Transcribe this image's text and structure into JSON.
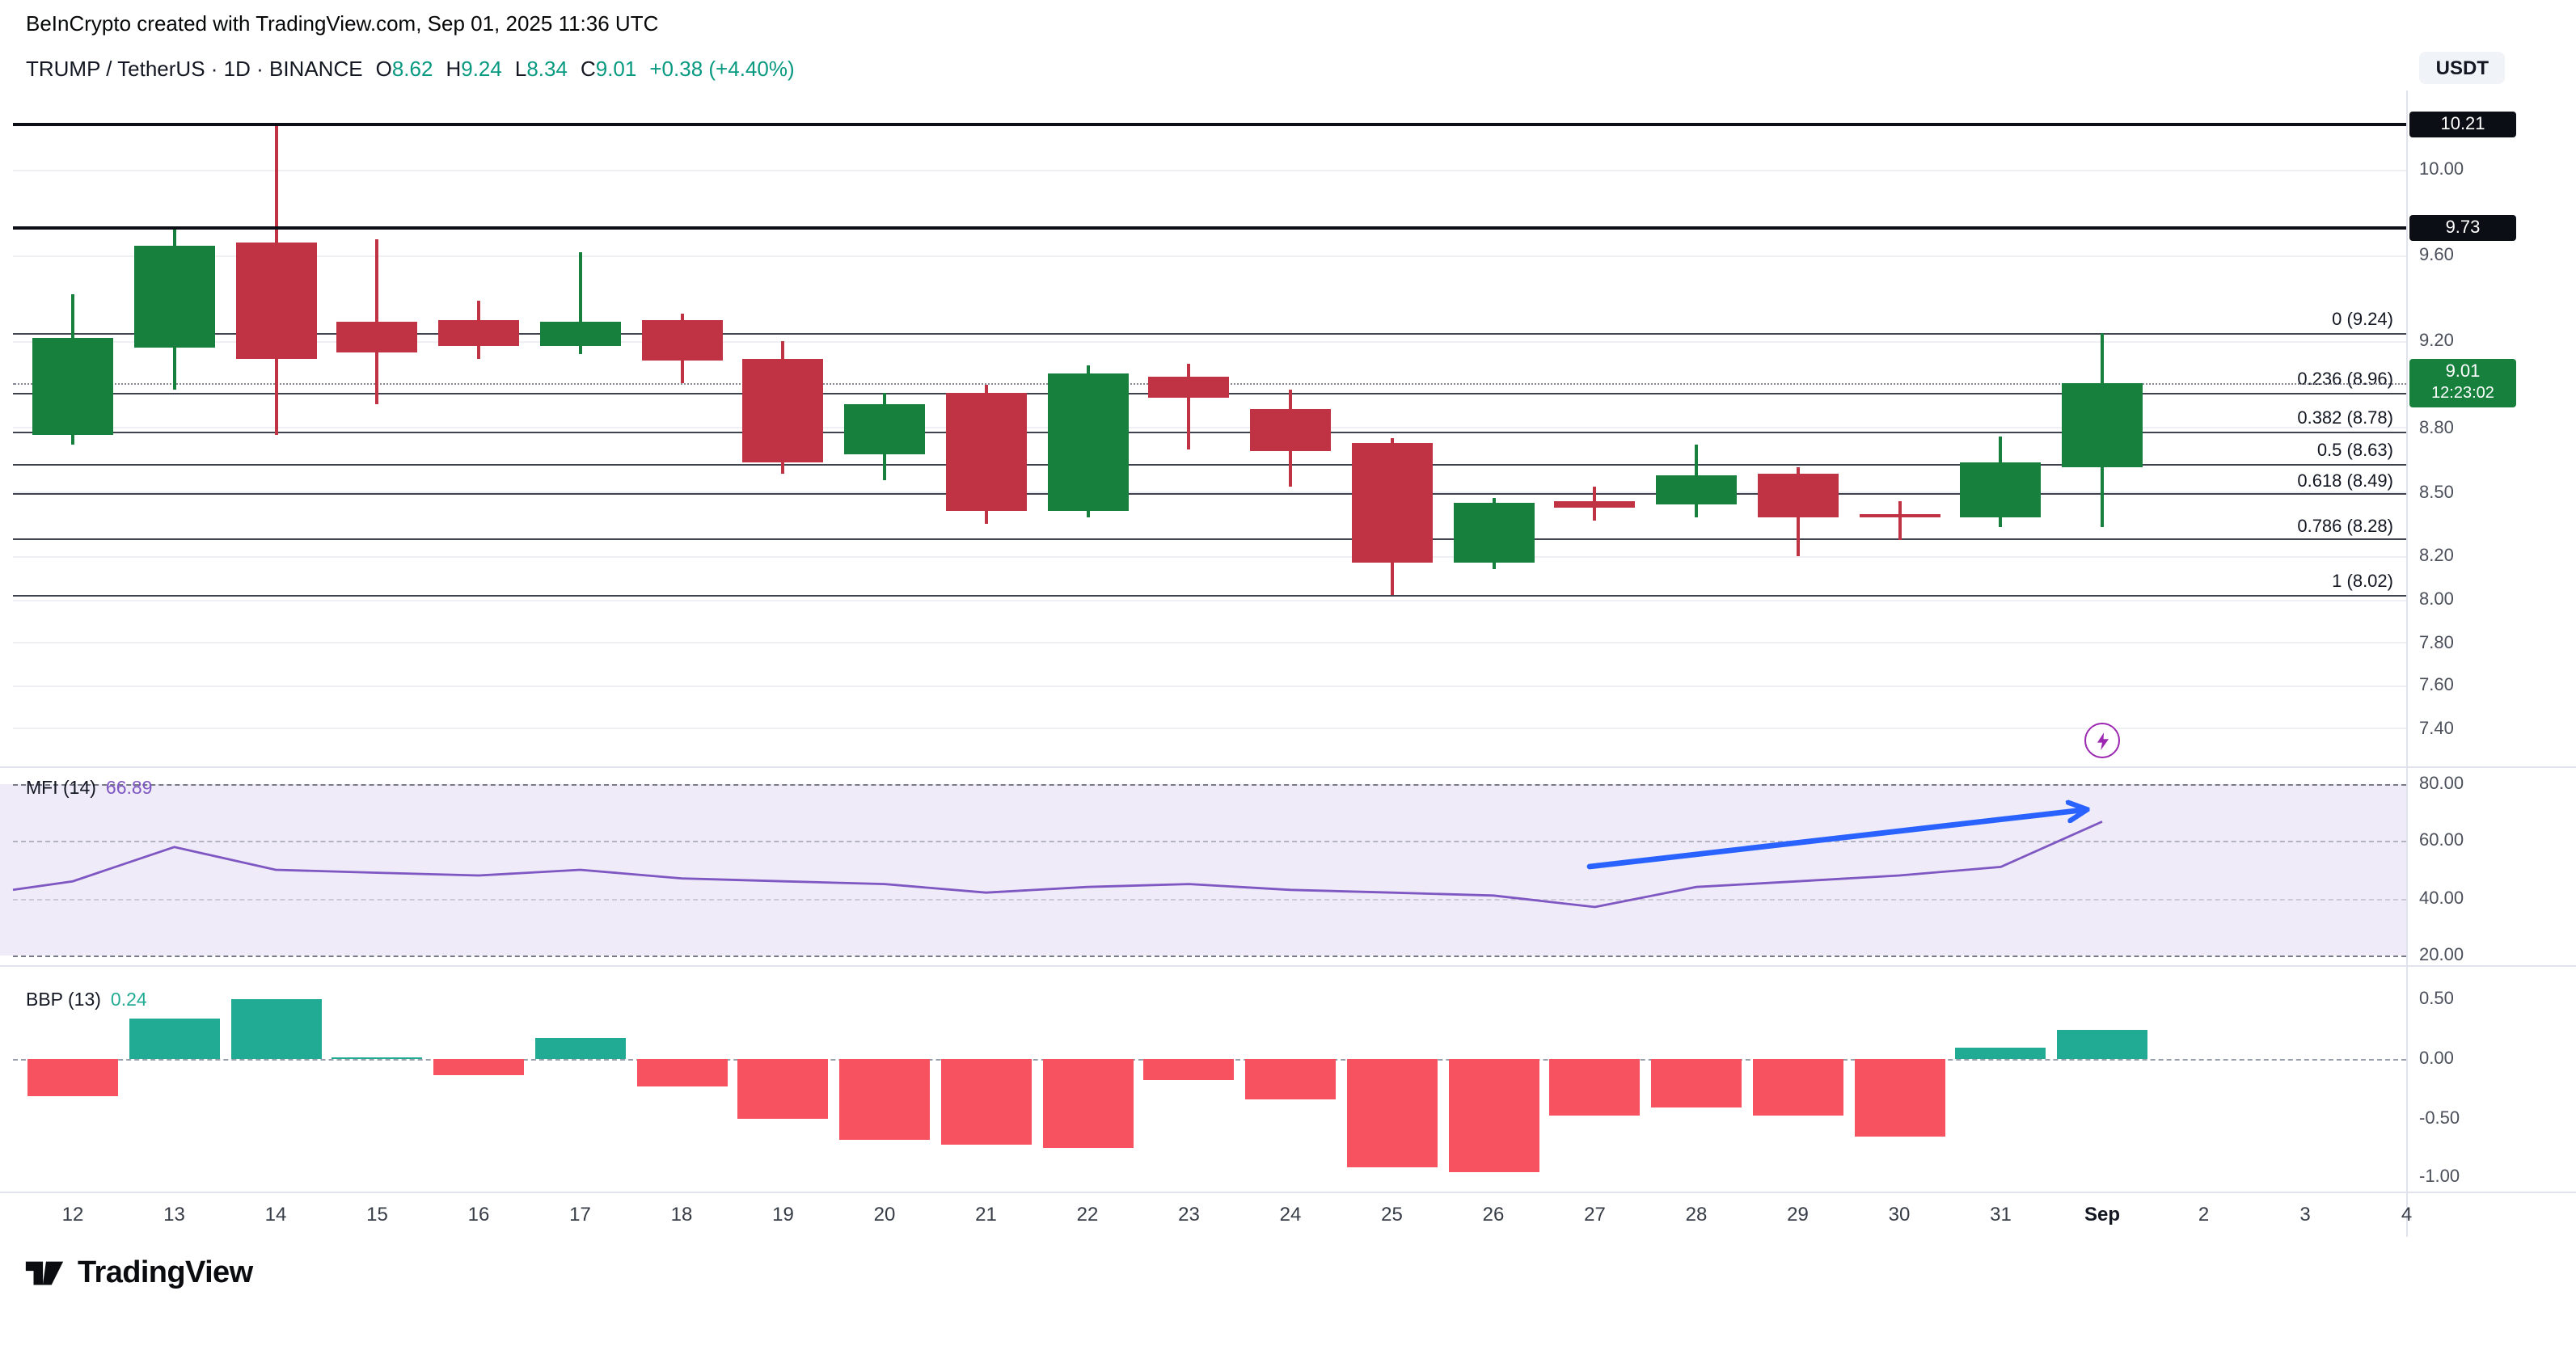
{
  "page": {
    "attribution": "BeInCrypto created with TradingView.com, Sep 01, 2025 11:36 UTC",
    "watermark": "TradingView"
  },
  "symbol_bar": {
    "title": "TRUMP / TetherUS · 1D · BINANCE",
    "open_label": "O",
    "open": "8.62",
    "high_label": "H",
    "high": "9.24",
    "low_label": "L",
    "low": "8.34",
    "close_label": "C",
    "close": "9.01",
    "change": "+0.38 (+4.40%)",
    "currency": "USDT"
  },
  "chart_data": [
    {
      "type": "candlestick",
      "name": "price",
      "symbol": "TRUMP / TetherUS",
      "interval": "1D",
      "exchange": "BINANCE",
      "categories": [
        "12",
        "13",
        "14",
        "15",
        "16",
        "17",
        "18",
        "19",
        "20",
        "21",
        "22",
        "23",
        "24",
        "25",
        "26",
        "27",
        "28",
        "29",
        "30",
        "31",
        "Sep"
      ],
      "candles": [
        {
          "o": 8.77,
          "h": 9.42,
          "l": 8.72,
          "c": 9.22
        },
        {
          "o": 9.17,
          "h": 9.74,
          "l": 8.98,
          "c": 9.65
        },
        {
          "o": 9.66,
          "h": 10.21,
          "l": 8.77,
          "c": 9.12
        },
        {
          "o": 9.29,
          "h": 9.68,
          "l": 8.91,
          "c": 9.15
        },
        {
          "o": 9.3,
          "h": 9.39,
          "l": 9.12,
          "c": 9.18
        },
        {
          "o": 9.18,
          "h": 9.62,
          "l": 9.14,
          "c": 9.29
        },
        {
          "o": 9.3,
          "h": 9.33,
          "l": 9.01,
          "c": 9.11
        },
        {
          "o": 9.12,
          "h": 9.2,
          "l": 8.59,
          "c": 8.64
        },
        {
          "o": 8.68,
          "h": 8.96,
          "l": 8.56,
          "c": 8.91
        },
        {
          "o": 8.96,
          "h": 9.0,
          "l": 8.35,
          "c": 8.41
        },
        {
          "o": 8.41,
          "h": 9.09,
          "l": 8.38,
          "c": 9.05
        },
        {
          "o": 9.04,
          "h": 9.1,
          "l": 8.7,
          "c": 8.94
        },
        {
          "o": 8.89,
          "h": 8.98,
          "l": 8.53,
          "c": 8.69
        },
        {
          "o": 8.73,
          "h": 8.75,
          "l": 8.02,
          "c": 8.17
        },
        {
          "o": 8.17,
          "h": 8.47,
          "l": 8.14,
          "c": 8.45
        },
        {
          "o": 8.46,
          "h": 8.53,
          "l": 8.37,
          "c": 8.43
        },
        {
          "o": 8.44,
          "h": 8.72,
          "l": 8.38,
          "c": 8.58
        },
        {
          "o": 8.59,
          "h": 8.62,
          "l": 8.2,
          "c": 8.38
        },
        {
          "o": 8.4,
          "h": 8.46,
          "l": 8.28,
          "c": 8.39
        },
        {
          "o": 8.38,
          "h": 8.76,
          "l": 8.34,
          "c": 8.64
        },
        {
          "o": 8.62,
          "h": 9.24,
          "l": 8.34,
          "c": 9.01
        }
      ],
      "fib_levels": [
        {
          "label": "0 (9.24)",
          "value": 9.24
        },
        {
          "label": "0.236 (8.96)",
          "value": 8.96
        },
        {
          "label": "0.382 (8.78)",
          "value": 8.78
        },
        {
          "label": "0.5 (8.63)",
          "value": 8.63
        },
        {
          "label": "0.618 (8.49)",
          "value": 8.49
        },
        {
          "label": "0.786 (8.28)",
          "value": 8.28
        },
        {
          "label": "1 (8.02)",
          "value": 8.02
        }
      ],
      "price_lines": [
        {
          "label": "10.21",
          "value": 10.21
        },
        {
          "label": "9.73",
          "value": 9.73
        }
      ],
      "last_price": {
        "label": "9.01",
        "countdown": "12:23:02",
        "value": 9.01
      },
      "y_ticks": [
        {
          "label": "10.00",
          "value": 10.0
        },
        {
          "label": "9.60",
          "value": 9.6
        },
        {
          "label": "9.20",
          "value": 9.2
        },
        {
          "label": "8.80",
          "value": 8.8
        },
        {
          "label": "8.50",
          "value": 8.5
        },
        {
          "label": "8.20",
          "value": 8.2
        },
        {
          "label": "8.00",
          "value": 8.0
        },
        {
          "label": "7.80",
          "value": 7.8
        },
        {
          "label": "7.60",
          "value": 7.6
        },
        {
          "label": "7.40",
          "value": 7.4
        }
      ],
      "ylim": [
        7.35,
        10.35
      ]
    },
    {
      "type": "line",
      "name": "MFI (14)",
      "value_label": "66.89",
      "values": [
        46,
        58,
        50,
        49,
        48,
        50,
        47,
        46,
        45,
        42,
        44,
        45,
        43,
        42,
        41,
        37,
        44,
        46,
        48,
        51,
        66.89
      ],
      "edge_start": 43,
      "y_ticks": [
        {
          "label": "80.00",
          "value": 80
        },
        {
          "label": "60.00",
          "value": 60
        },
        {
          "label": "40.00",
          "value": 40
        },
        {
          "label": "20.00",
          "value": 20
        }
      ],
      "band": [
        80,
        20
      ],
      "annotation": {
        "type": "arrow",
        "note": "blue upward trend arrow from day 27 to Sep"
      }
    },
    {
      "type": "bar",
      "name": "BBP (13)",
      "value_label": "0.24",
      "values": [
        -0.32,
        0.34,
        0.5,
        0.02,
        -0.14,
        0.18,
        -0.23,
        -0.51,
        -0.68,
        -0.73,
        -0.75,
        -0.18,
        -0.34,
        -0.92,
        -0.96,
        -0.48,
        -0.41,
        -0.48,
        -0.66,
        0.1,
        0.24
      ],
      "y_ticks": [
        {
          "label": "0.50",
          "value": 0.5
        },
        {
          "label": "0.00",
          "value": 0
        },
        {
          "label": "-0.50",
          "value": -0.5
        },
        {
          "label": "-1.00",
          "value": -1
        }
      ]
    }
  ],
  "x_axis": {
    "labels": [
      "12",
      "13",
      "14",
      "15",
      "16",
      "17",
      "18",
      "19",
      "20",
      "21",
      "22",
      "23",
      "24",
      "25",
      "26",
      "27",
      "28",
      "29",
      "30",
      "31",
      "Sep",
      "2",
      "3",
      "4"
    ],
    "bold_label": "Sep"
  },
  "colors": {
    "candle_up": "#17803d",
    "candle_down": "#bf3345",
    "bbp_up": "#22ab94",
    "bbp_down": "#f7525f",
    "mfi_line": "#7e57c2",
    "arrow_blue": "#2962ff",
    "event_purple": "#9c27b0",
    "ohlc_green": "#089981",
    "badge_black": "#0c0e15",
    "badge_green": "#17803d"
  }
}
